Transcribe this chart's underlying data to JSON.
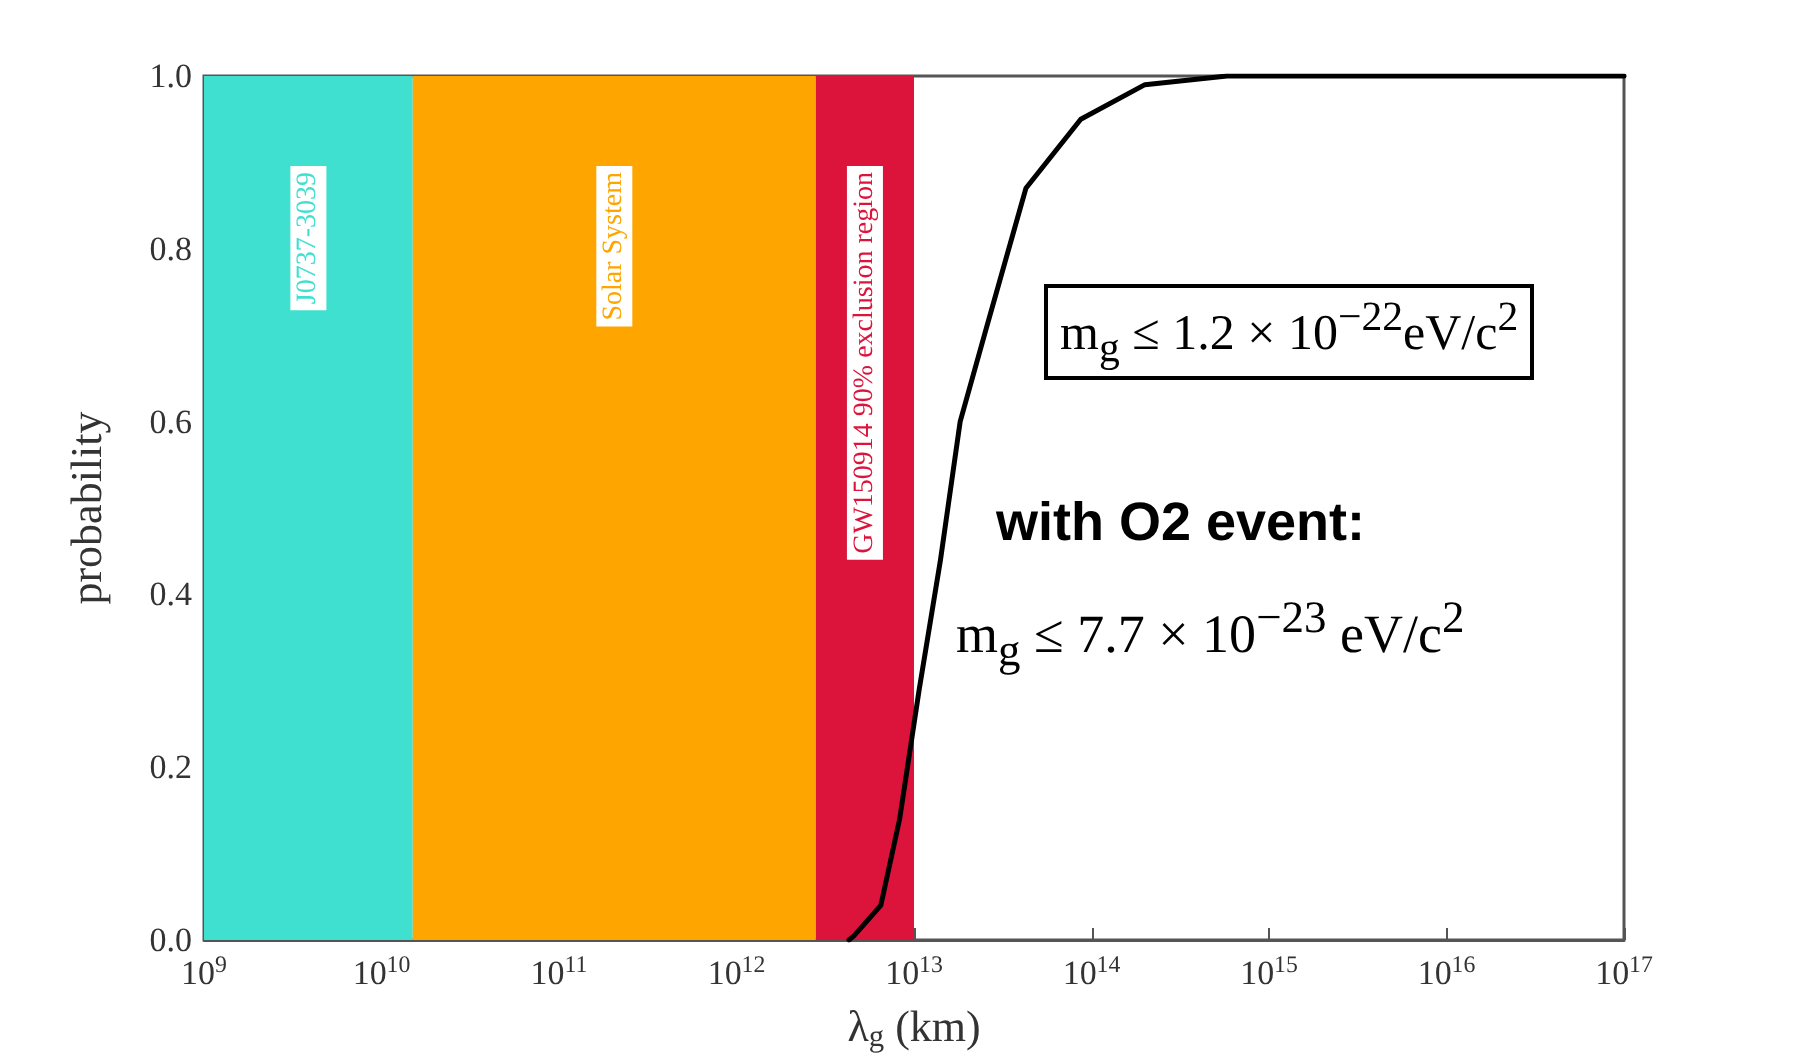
{
  "chart_data": {
    "type": "line",
    "xlabel": "λ$_{g}$ (km)",
    "ylabel": "probability",
    "log": "x",
    "x": [
      4300000000000.0,
      4600000000000.0,
      6500000000000.0,
      8300000000000.0,
      10700000000000.0,
      14100000000000.0,
      18200000000000.0,
      25700000000000.0,
      42700000000000.0,
      87000000000000.0,
      200000000000000.0,
      580000000000000.0,
      1e+17
    ],
    "series": [
      {
        "color": "#000000",
        "values": [
          0,
          0.005,
          0.04,
          0.14,
          0.29,
          0.44,
          0.6,
          0.71,
          0.87,
          0.95,
          0.99,
          1.0,
          1.0
        ]
      }
    ],
    "xlim": [
      1000000000.0,
      1e+17
    ],
    "xticks": [
      {
        "value": 1000000000.0,
        "label": "10$^{9}$"
      },
      {
        "value": 10000000000.0,
        "label": "10$^{10}$"
      },
      {
        "value": 100000000000.0,
        "label": "10$^{11}$"
      },
      {
        "value": 1000000000000.0,
        "label": "10$^{12}$"
      },
      {
        "value": 10000000000000.0,
        "label": "10$^{13}$"
      },
      {
        "value": 100000000000000.0,
        "label": "10$^{14}$"
      },
      {
        "value": 1000000000000000.0,
        "label": "10$^{15}$"
      },
      {
        "value": 1e+16,
        "label": "10$^{16}$"
      },
      {
        "value": 1e+17,
        "label": "10$^{17}$"
      }
    ],
    "ylim": [
      0,
      1
    ],
    "yticks": [
      {
        "value": 0,
        "label": "0.0"
      },
      {
        "value": 0.2,
        "label": "0.2"
      },
      {
        "value": 0.4,
        "label": "0.4"
      },
      {
        "value": 0.6,
        "label": "0.6"
      },
      {
        "value": 0.8,
        "label": "0.8"
      },
      {
        "value": 1,
        "label": "1.0"
      }
    ],
    "bands": [
      {
        "axis": "x",
        "from": 1000000000.0,
        "to": 15000000000.0,
        "label": "J0737-3039",
        "color": "#40e0d0"
      },
      {
        "axis": "x",
        "from": 15000000000.0,
        "to": 2800000000000.0,
        "label": "Solar System",
        "color": "#ffa500"
      },
      {
        "axis": "x",
        "from": 2800000000000.0,
        "to": 10000000000000.0,
        "label": "GW150914 90% exclusion region",
        "color": "#dc143c"
      }
    ],
    "annotations": [
      "m$_{g}$ ≤ 1.2 × 10$^{−22}$eV/c$^{2}$",
      "with O2 event:",
      "m$_{g}$ ≤ 7.7 × 10$^{−23}$ eV/c$^{2}$"
    ],
    "grid": false,
    "marker": "none",
    "line_style": "solid"
  }
}
